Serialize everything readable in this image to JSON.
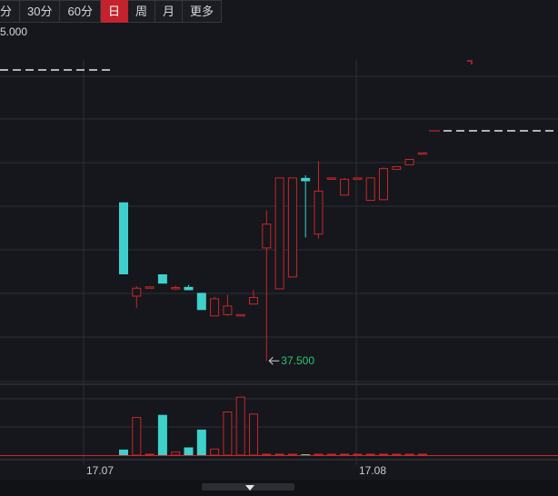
{
  "toolbar": {
    "buttons": [
      "分",
      "30分",
      "60分",
      "日",
      "周",
      "月",
      "更多"
    ],
    "active": "日"
  },
  "price_axis_label": "5.000",
  "colors": {
    "up": "#c9262b",
    "down": "#3fd0cc",
    "background": "#15171c",
    "grid": "#2c2f36",
    "low_annotation": "#2bc66d"
  },
  "chart_data": {
    "type": "candlestick",
    "x_labels": [
      "17.07",
      "17.08"
    ],
    "low_annotation": "37.500",
    "candles": [
      {
        "dir": "down",
        "o": 61.5,
        "c": 50.6,
        "h": 61.5,
        "l": 50.6
      },
      {
        "dir": "up",
        "o": 47.3,
        "c": 48.5,
        "h": 48.8,
        "l": 45.5
      },
      {
        "dir": "up",
        "o": 48.6,
        "c": 48.7,
        "h": 48.7,
        "l": 48.6
      },
      {
        "dir": "down",
        "o": 50.6,
        "c": 49.2,
        "h": 50.6,
        "l": 49.2
      },
      {
        "dir": "up",
        "o": 48.5,
        "c": 48.6,
        "h": 48.9,
        "l": 48.2
      },
      {
        "dir": "down",
        "o": 48.7,
        "c": 48.2,
        "h": 49.0,
        "l": 48.2
      },
      {
        "dir": "down",
        "o": 47.8,
        "c": 45.2,
        "h": 47.8,
        "l": 45.2
      },
      {
        "dir": "up",
        "o": 44.3,
        "c": 46.9,
        "h": 47.2,
        "l": 44.3
      },
      {
        "dir": "up",
        "o": 44.5,
        "c": 45.8,
        "h": 47.5,
        "l": 44.3
      },
      {
        "dir": "up",
        "o": 44.3,
        "c": 44.5,
        "h": 44.5,
        "l": 44.3
      },
      {
        "dir": "up",
        "o": 46.1,
        "c": 47.1,
        "h": 48.2,
        "l": 46.1
      },
      {
        "dir": "up",
        "o": 54.6,
        "c": 58.2,
        "h": 60.3,
        "l": 37.5
      },
      {
        "dir": "up",
        "o": 48.4,
        "c": 65.2,
        "h": 65.2,
        "l": 48.4
      },
      {
        "dir": "up",
        "o": 50.2,
        "c": 65.2,
        "h": 65.2,
        "l": 50.2
      },
      {
        "dir": "down",
        "o": 65.2,
        "c": 64.7,
        "h": 65.6,
        "l": 56.2
      },
      {
        "dir": "up",
        "o": 56.7,
        "c": 63.2,
        "h": 67.7,
        "l": 56.0
      },
      {
        "dir": "up",
        "o": 65.2,
        "c": 65.2,
        "h": 65.2,
        "l": 65.2
      },
      {
        "dir": "up",
        "o": 62.6,
        "c": 65.0,
        "h": 65.2,
        "l": 62.6
      },
      {
        "dir": "up",
        "o": 65.2,
        "c": 65.2,
        "h": 65.2,
        "l": 65.2
      },
      {
        "dir": "up",
        "o": 61.8,
        "c": 65.2,
        "h": 65.2,
        "l": 61.8
      },
      {
        "dir": "up",
        "o": 61.9,
        "c": 66.6,
        "h": 66.8,
        "l": 61.9
      },
      {
        "dir": "up",
        "o": 66.5,
        "c": 66.9,
        "h": 66.9,
        "l": 66.5
      },
      {
        "dir": "up",
        "o": 67.2,
        "c": 68.0,
        "h": 68.0,
        "l": 67.2
      },
      {
        "dir": "up",
        "o": 69.0,
        "c": 69.0,
        "h": 69.0,
        "l": 69.0
      }
    ],
    "volumes": [
      6.1,
      41.4,
      0,
      44.3,
      3.4,
      8.5,
      28.1,
      6.7,
      47.5,
      63.8,
      45.2,
      0.5,
      0.5,
      0.5,
      0.5,
      0.5,
      0.5,
      0.5,
      0.5,
      0.5,
      0.5,
      0.5,
      0.5,
      0.5
    ]
  }
}
